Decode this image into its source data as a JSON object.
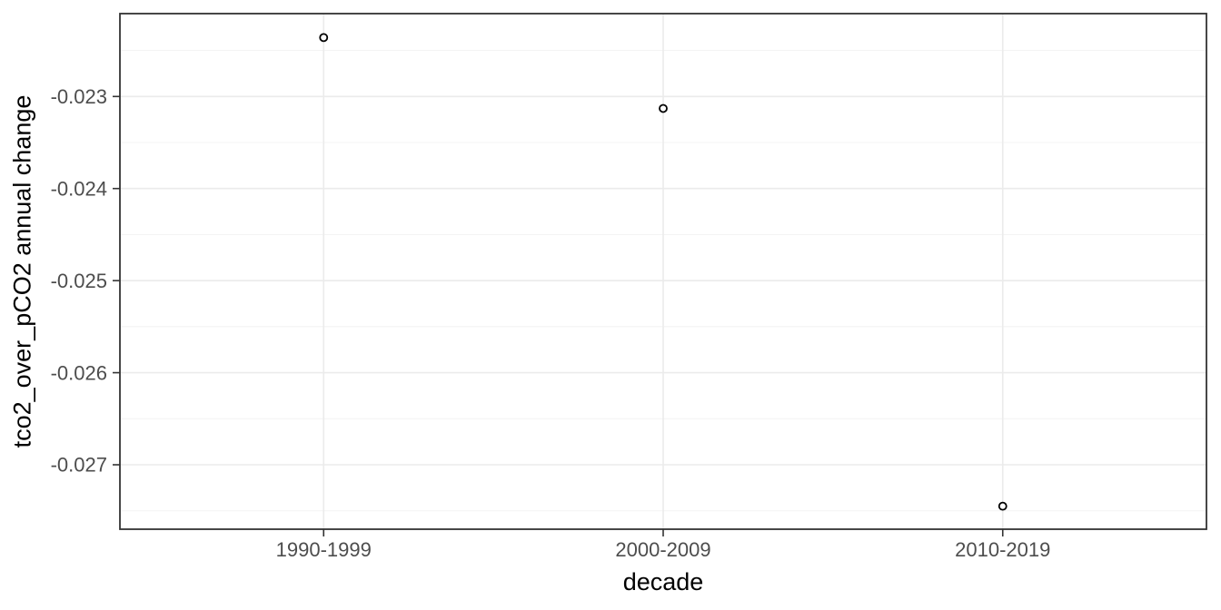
{
  "chart_data": {
    "type": "scatter",
    "title": "",
    "xlabel": "decade",
    "ylabel": "tco2_over_pCO2 annual change",
    "categories": [
      "1990-1999",
      "2000-2009",
      "2010-2019"
    ],
    "series": [
      {
        "name": "tco2_over_pCO2 annual change",
        "values": [
          -0.02236,
          -0.02313,
          -0.02745
        ]
      }
    ],
    "ylim": [
      -0.0277,
      -0.0221
    ],
    "y_major_ticks": [
      {
        "value": -0.023,
        "label": "-0.023"
      },
      {
        "value": -0.024,
        "label": "-0.024"
      },
      {
        "value": -0.025,
        "label": "-0.025"
      },
      {
        "value": -0.026,
        "label": "-0.026"
      },
      {
        "value": -0.027,
        "label": "-0.027"
      }
    ],
    "y_minor_ticks": [
      -0.0225,
      -0.0235,
      -0.0245,
      -0.0255,
      -0.0265,
      -0.0275
    ],
    "grid": "major-and-minor-horizontal, major-vertical-at-categories",
    "legend_position": "none",
    "point_style": {
      "shape": "open-circle",
      "radius": 4,
      "stroke": "#000000",
      "fill": "#ffffff"
    },
    "colors": {
      "panel_background": "#ffffff",
      "panel_border": "#333333",
      "grid_major": "#ebebeb",
      "grid_minor": "#f4f4f4",
      "tick_mark": "#333333",
      "tick_label": "#4d4d4d",
      "axis_title": "#000000"
    }
  }
}
